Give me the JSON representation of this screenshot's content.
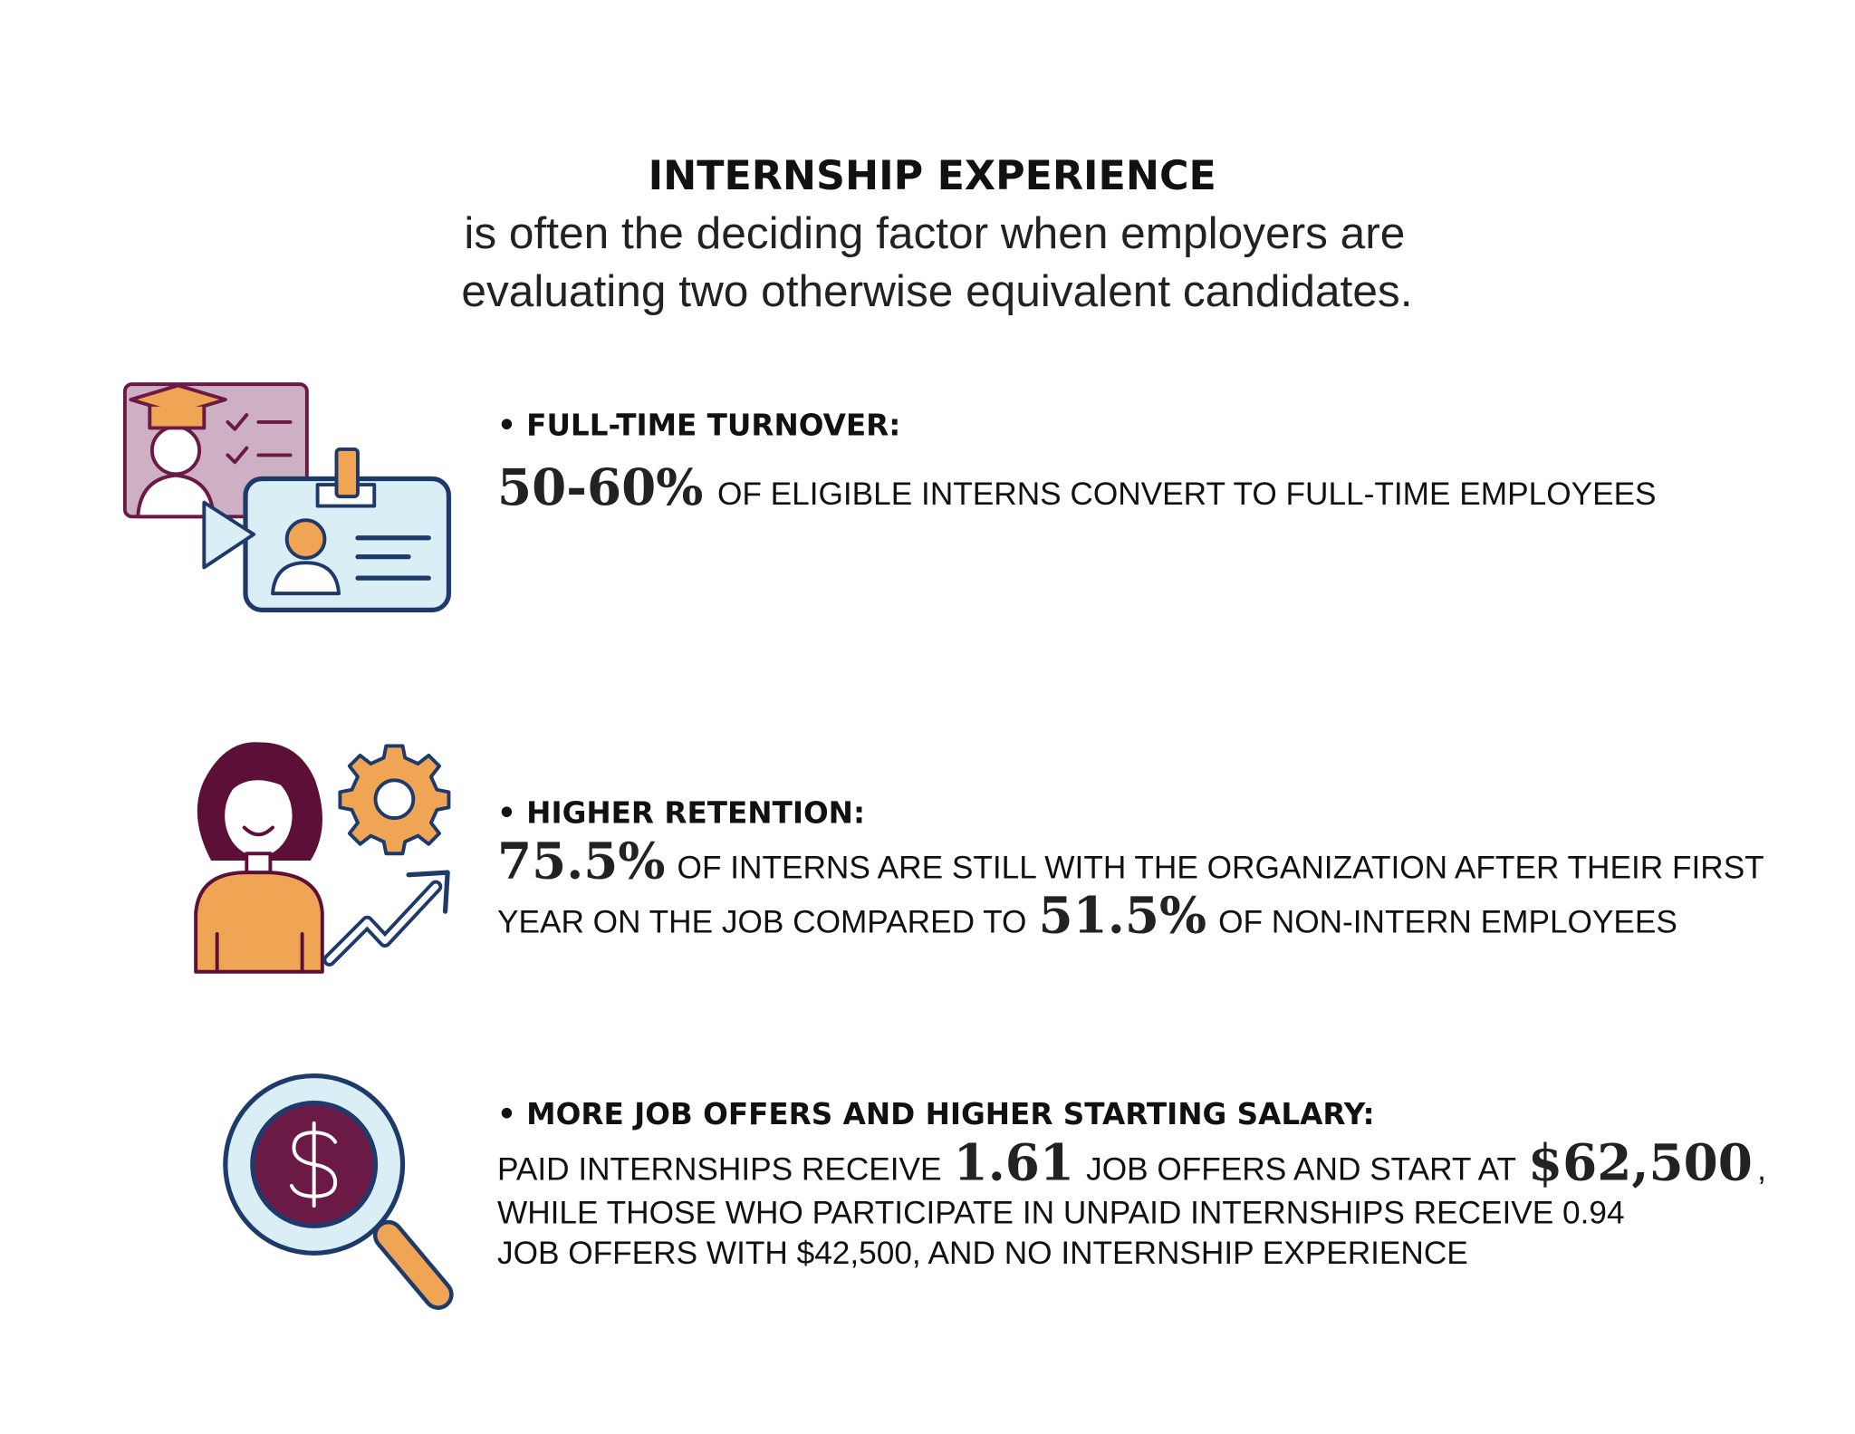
{
  "header": {
    "title": "INTERNSHIP EXPERIENCE",
    "subtitle_lines": [
      "is often the deciding factor when employers are",
      "evaluating two otherwise equivalent candidates."
    ]
  },
  "items": [
    {
      "heading": "• FULL-TIME TURNOVER:",
      "parts": [
        "50-60%",
        "OF ELIGIBLE INTERNS CONVERT TO FULL-TIME EMPLOYEES"
      ]
    },
    {
      "heading": "• HIGHER RETENTION:",
      "parts": [
        "75.5%",
        "OF INTERNS ARE STILL WITH THE ORGANIZATION AFTER THEIR FIRST",
        "YEAR ON THE JOB COMPARED TO",
        "51.5%",
        "OF NON-INTERN EMPLOYEES"
      ]
    },
    {
      "heading": "• MORE JOB OFFERS AND HIGHER STARTING SALARY:",
      "parts": [
        "PAID INTERNSHIPS RECEIVE",
        "1.61",
        "JOB OFFERS AND START AT",
        "$62,500",
        ",",
        "WHILE THOSE WHO PARTICIPATE IN UNPAID INTERNSHIPS RECEIVE 0.94",
        "JOB OFFERS WITH $42,500, AND NO INTERNSHIP EXPERIENCE"
      ]
    }
  ]
}
